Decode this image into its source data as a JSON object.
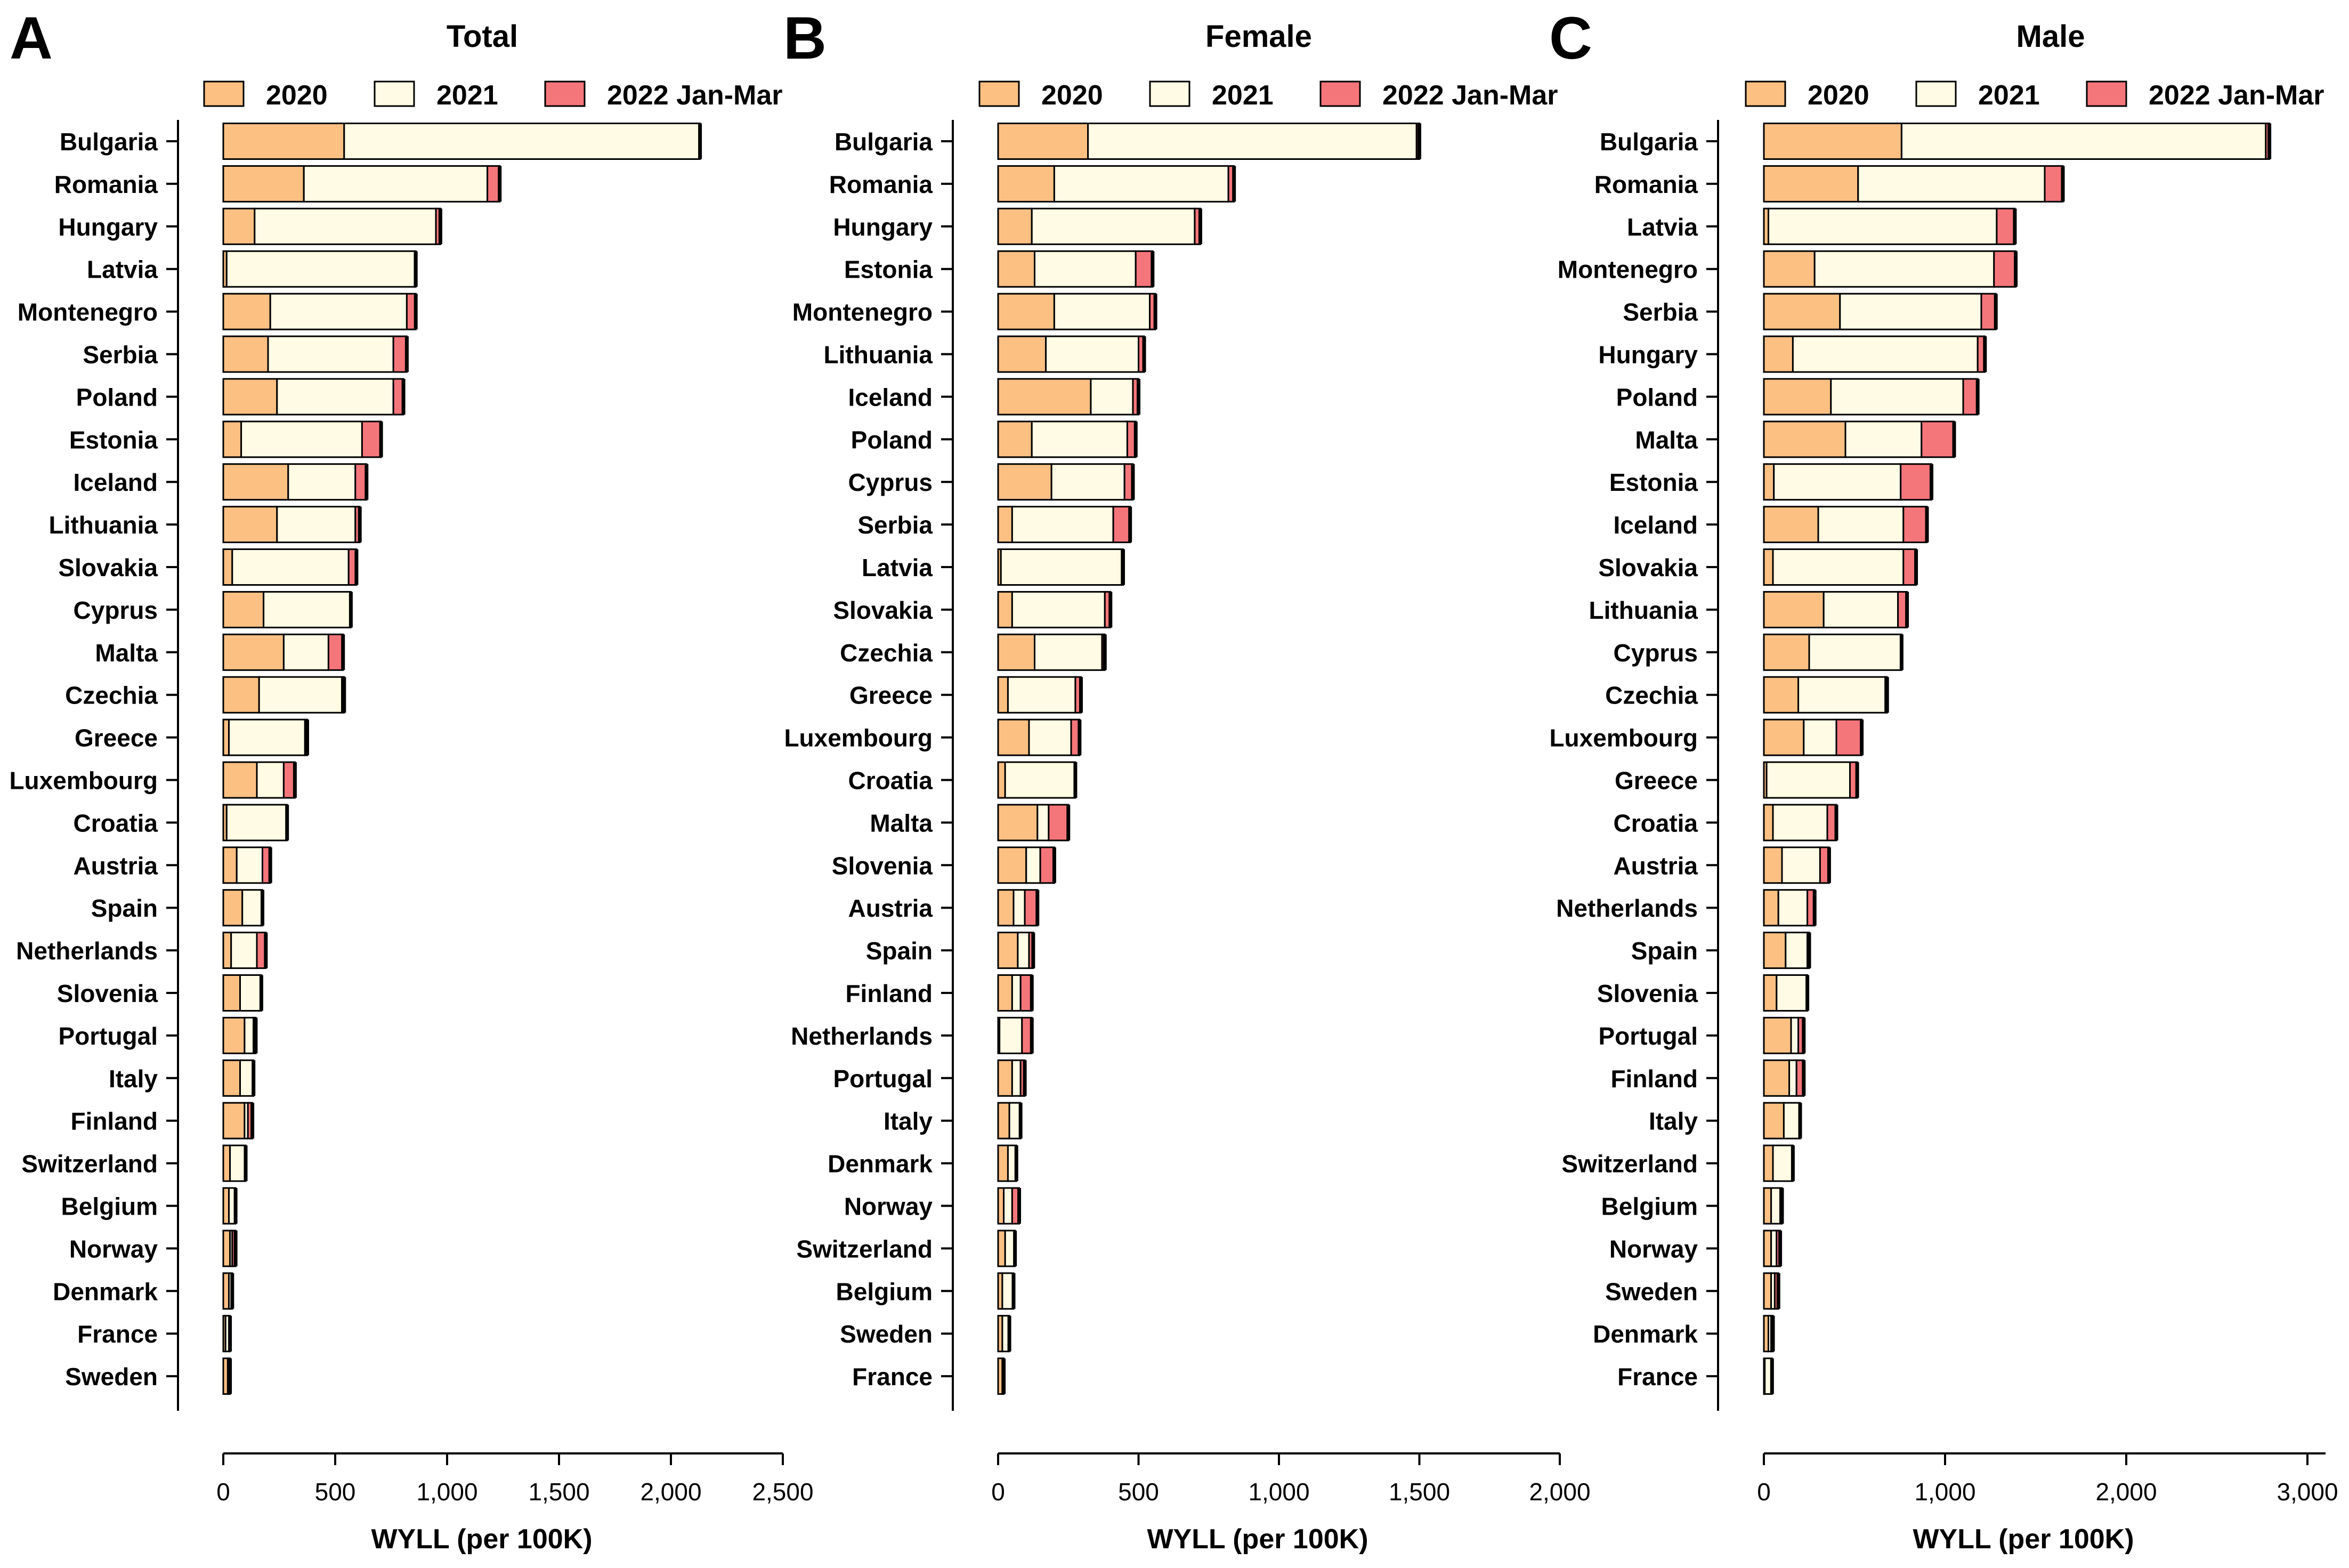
{
  "figure": {
    "colors": {
      "c2020": "#fcc083",
      "c2021": "#fffbe4",
      "c2022": "#f5767a",
      "outline": "#000000"
    },
    "legend_labels": [
      "2020",
      "2021",
      "2022 Jan-Mar"
    ],
    "x_label": "WYLL (per 100K)"
  },
  "chart_data": [
    {
      "panel": "A",
      "title": "Total",
      "type": "bar",
      "orientation": "horizontal",
      "stacked": true,
      "xlim": [
        0,
        2500
      ],
      "x_ticks": [
        0,
        500,
        1000,
        1500,
        2000,
        2500
      ],
      "x_tick_labels": [
        "0",
        "500",
        "1,000",
        "1,500",
        "2,000",
        "2,500"
      ],
      "xlabel": "WYLL (per 100K)",
      "categories": [
        "Bulgaria",
        "Romania",
        "Hungary",
        "Latvia",
        "Montenegro",
        "Serbia",
        "Poland",
        "Estonia",
        "Iceland",
        "Lithuania",
        "Slovakia",
        "Cyprus",
        "Malta",
        "Czechia",
        "Greece",
        "Luxembourg",
        "Croatia",
        "Austria",
        "Spain",
        "Netherlands",
        "Slovenia",
        "Portugal",
        "Italy",
        "Finland",
        "Switzerland",
        "Belgium",
        "Norway",
        "Denmark",
        "France",
        "Sweden"
      ],
      "series": [
        {
          "name": "2020",
          "values": [
            540,
            360,
            140,
            15,
            210,
            200,
            240,
            80,
            290,
            240,
            40,
            180,
            270,
            160,
            25,
            150,
            15,
            60,
            85,
            35,
            75,
            95,
            75,
            95,
            30,
            25,
            30,
            25,
            10,
            20
          ]
        },
        {
          "name": "2021",
          "values": [
            1590,
            820,
            810,
            840,
            610,
            560,
            520,
            540,
            300,
            350,
            520,
            390,
            200,
            370,
            340,
            120,
            270,
            115,
            90,
            115,
            95,
            40,
            60,
            15,
            70,
            30,
            10,
            15,
            20,
            10
          ]
        },
        {
          "name": "2022 Jan-Mar",
          "values": [
            0,
            55,
            20,
            5,
            40,
            60,
            45,
            85,
            50,
            20,
            35,
            0,
            65,
            10,
            10,
            50,
            0,
            35,
            0,
            40,
            0,
            10,
            0,
            20,
            0,
            0,
            15,
            0,
            0,
            0
          ]
        }
      ]
    },
    {
      "panel": "B",
      "title": "Female",
      "type": "bar",
      "orientation": "horizontal",
      "stacked": true,
      "xlim": [
        0,
        2000
      ],
      "x_ticks": [
        0,
        500,
        1000,
        1500,
        2000
      ],
      "x_tick_labels": [
        "0",
        "500",
        "1,000",
        "1,500",
        "2,000"
      ],
      "xlabel": "WYLL (per 100K)",
      "categories": [
        "Bulgaria",
        "Romania",
        "Hungary",
        "Estonia",
        "Montenegro",
        "Lithuania",
        "Iceland",
        "Poland",
        "Cyprus",
        "Serbia",
        "Latvia",
        "Slovakia",
        "Czechia",
        "Greece",
        "Luxembourg",
        "Croatia",
        "Malta",
        "Slovenia",
        "Austria",
        "Spain",
        "Finland",
        "Netherlands",
        "Portugal",
        "Italy",
        "Denmark",
        "Norway",
        "Switzerland",
        "Belgium",
        "Sweden",
        "France"
      ],
      "series": [
        {
          "name": "2020",
          "values": [
            320,
            200,
            120,
            130,
            200,
            170,
            330,
            120,
            190,
            50,
            10,
            50,
            130,
            35,
            110,
            25,
            140,
            100,
            55,
            70,
            50,
            5,
            50,
            40,
            35,
            20,
            25,
            15,
            15,
            15
          ]
        },
        {
          "name": "2021",
          "values": [
            1170,
            620,
            580,
            360,
            340,
            330,
            150,
            340,
            260,
            360,
            430,
            330,
            240,
            240,
            150,
            250,
            40,
            50,
            40,
            40,
            30,
            80,
            30,
            40,
            30,
            30,
            35,
            40,
            25,
            5
          ]
        },
        {
          "name": "2022 Jan-Mar",
          "values": [
            10,
            20,
            20,
            60,
            20,
            20,
            20,
            30,
            30,
            60,
            5,
            20,
            10,
            20,
            30,
            0,
            70,
            50,
            45,
            15,
            40,
            35,
            15,
            0,
            0,
            25,
            0,
            0,
            0,
            0
          ]
        }
      ]
    },
    {
      "panel": "C",
      "title": "Male",
      "type": "bar",
      "orientation": "horizontal",
      "stacked": true,
      "xlim": [
        0,
        3100
      ],
      "x_ticks": [
        0,
        1000,
        2000,
        3000
      ],
      "x_tick_labels": [
        "0",
        "1,000",
        "2,000",
        "3,000"
      ],
      "xlabel": "WYLL (per 100K)",
      "categories": [
        "Bulgaria",
        "Romania",
        "Latvia",
        "Montenegro",
        "Serbia",
        "Hungary",
        "Poland",
        "Malta",
        "Estonia",
        "Iceland",
        "Slovakia",
        "Lithuania",
        "Cyprus",
        "Czechia",
        "Luxembourg",
        "Greece",
        "Croatia",
        "Austria",
        "Netherlands",
        "Spain",
        "Slovenia",
        "Portugal",
        "Finland",
        "Italy",
        "Switzerland",
        "Belgium",
        "Norway",
        "Sweden",
        "Denmark",
        "France"
      ],
      "series": [
        {
          "name": "2020",
          "values": [
            760,
            520,
            25,
            280,
            420,
            160,
            370,
            450,
            55,
            300,
            50,
            330,
            250,
            190,
            220,
            15,
            50,
            100,
            80,
            120,
            70,
            150,
            140,
            110,
            50,
            40,
            40,
            40,
            25,
            5
          ]
        },
        {
          "name": "2021",
          "values": [
            2010,
            1030,
            1260,
            990,
            780,
            1020,
            730,
            420,
            700,
            470,
            720,
            410,
            510,
            480,
            180,
            460,
            300,
            210,
            160,
            120,
            170,
            40,
            40,
            90,
            110,
            50,
            30,
            20,
            15,
            40
          ]
        },
        {
          "name": "2022 Jan-Mar",
          "values": [
            20,
            100,
            100,
            120,
            80,
            40,
            80,
            180,
            170,
            130,
            70,
            50,
            0,
            10,
            140,
            40,
            50,
            50,
            40,
            10,
            0,
            30,
            40,
            0,
            0,
            10,
            20,
            20,
            10,
            0
          ]
        }
      ]
    }
  ]
}
